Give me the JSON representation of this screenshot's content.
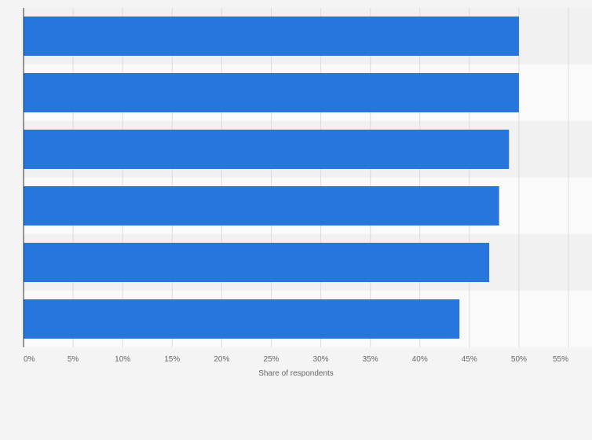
{
  "chart_data": {
    "type": "bar",
    "orientation": "horizontal",
    "categories": [
      "",
      "",
      "",
      "",
      "",
      ""
    ],
    "values": [
      50,
      50,
      49,
      48,
      47,
      44
    ],
    "x_ticks": [
      "0%",
      "5%",
      "10%",
      "15%",
      "20%",
      "25%",
      "30%",
      "35%",
      "40%",
      "45%",
      "50%",
      "55%"
    ],
    "xlabel": "Share of respondents",
    "xlim": [
      0,
      55
    ],
    "grid": true,
    "colors": {
      "bar": "#2776dd",
      "grid": "#dcdcdc",
      "axis": "#333333",
      "band_dark": "#f1f1f1",
      "band_light": "#fafafa",
      "background": "#f4f4f4"
    }
  }
}
